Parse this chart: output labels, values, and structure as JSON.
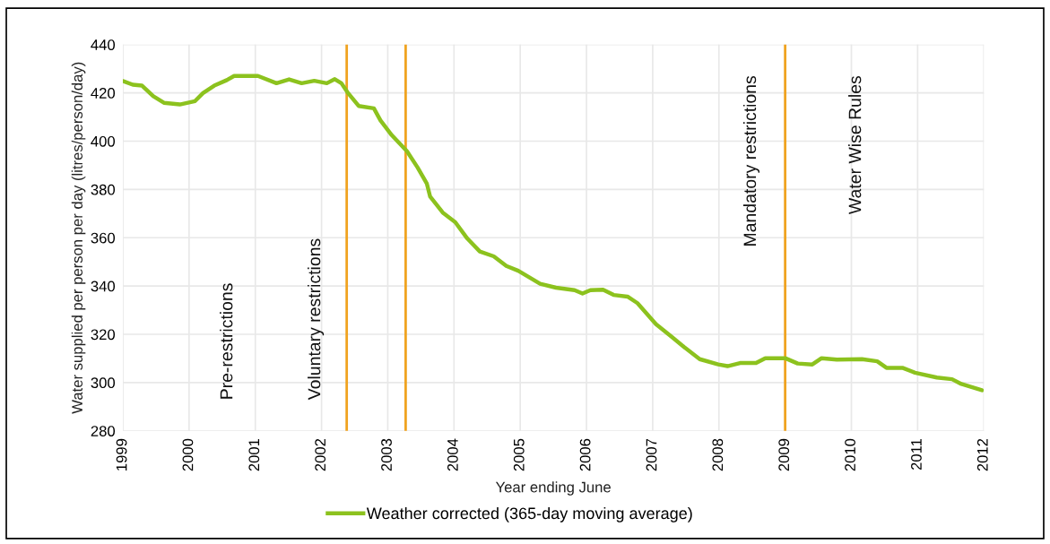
{
  "chart_data": {
    "type": "line",
    "xlabel": "Year ending June",
    "ylabel": "Water supplied per person per day (litres/person/day)",
    "xlim": [
      1999,
      2012
    ],
    "xticks": [
      1999,
      2000,
      2001,
      2002,
      2003,
      2004,
      2005,
      2006,
      2007,
      2008,
      2009,
      2010,
      2011,
      2012
    ],
    "ylim": [
      280,
      440
    ],
    "yticks": [
      280,
      300,
      320,
      340,
      360,
      380,
      400,
      420,
      440
    ],
    "grid": true,
    "legend": "bottom",
    "marker": "none",
    "line_style": "solid",
    "series": [
      {
        "name": "Weather corrected (365-day moving average)",
        "color": "#8cc21e",
        "x": [
          1999.0,
          1999.15,
          1999.29,
          1999.46,
          1999.62,
          1999.86,
          2000.09,
          2000.21,
          2000.38,
          2000.57,
          2000.68,
          2001.04,
          2001.32,
          2001.51,
          2001.7,
          2001.89,
          2002.08,
          2002.2,
          2002.3,
          2002.39,
          2002.56,
          2002.79,
          2002.89,
          2003.06,
          2003.29,
          2003.45,
          2003.59,
          2003.64,
          2003.83,
          2004.02,
          2004.2,
          2004.39,
          2004.6,
          2004.79,
          2004.97,
          2005.3,
          2005.54,
          2005.82,
          2005.94,
          2006.06,
          2006.25,
          2006.41,
          2006.62,
          2006.77,
          2007.05,
          2007.29,
          2007.47,
          2007.71,
          2007.99,
          2008.13,
          2008.32,
          2008.56,
          2008.7,
          2009.0,
          2009.19,
          2009.41,
          2009.55,
          2009.78,
          2010.16,
          2010.39,
          2010.53,
          2010.77,
          2010.96,
          2011.29,
          2011.52,
          2011.66,
          2011.97
        ],
        "values": [
          424.9,
          423.4,
          423,
          418.6,
          415.9,
          415.2,
          416.6,
          419.9,
          423,
          425.3,
          427,
          427,
          424,
          425.6,
          424,
          425,
          424,
          425.7,
          424,
          420.3,
          414.6,
          413.6,
          408.6,
          402.5,
          395.8,
          389.1,
          382.4,
          377,
          370.4,
          366.4,
          359.7,
          354.3,
          352.3,
          348.3,
          346.3,
          340.9,
          339.3,
          338.3,
          336.9,
          338.3,
          338.5,
          336.3,
          335.6,
          332.9,
          324.2,
          318.9,
          314.8,
          309.7,
          307.5,
          306.8,
          308.1,
          308.1,
          310.1,
          310.1,
          307.9,
          307.5,
          310.1,
          309.5,
          309.7,
          308.8,
          306.1,
          306.1,
          304.1,
          302.1,
          301.4,
          299.4,
          296.8
        ]
      }
    ],
    "ref_lines": [
      {
        "axis": "x",
        "value": 2002.38,
        "color": "#f0a320"
      },
      {
        "axis": "x",
        "value": 2003.27,
        "color": "#f0a320"
      },
      {
        "axis": "x",
        "value": 2009.0,
        "color": "#f0a320"
      }
    ],
    "annotations": [
      "Pre-restrictions",
      "Voluntary restrictions",
      "Mandatory restrictions",
      "Water Wise Rules"
    ]
  }
}
